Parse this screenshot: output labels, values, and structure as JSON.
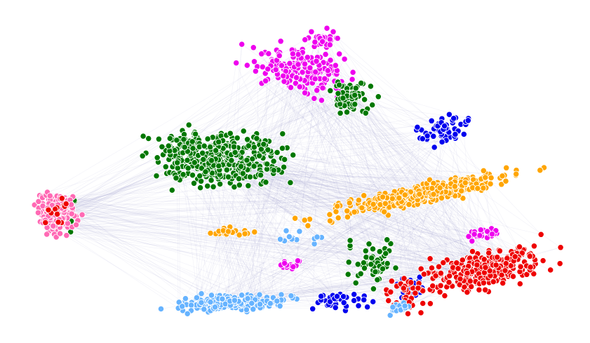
{
  "graph": {
    "type": "network",
    "background": "#ffffff",
    "edge_color": "#8e8fc4",
    "node_stroke": "#ffffff",
    "communities": [
      {
        "id": "magenta",
        "color": "#ee00ee"
      },
      {
        "id": "green",
        "color": "#007700"
      },
      {
        "id": "blue",
        "color": "#0000ee"
      },
      {
        "id": "orange",
        "color": "#ffa500"
      },
      {
        "id": "pink",
        "color": "#ff69b4"
      },
      {
        "id": "red",
        "color": "#ee0000"
      },
      {
        "id": "light-blue",
        "color": "#66b3ff"
      }
    ]
  }
}
